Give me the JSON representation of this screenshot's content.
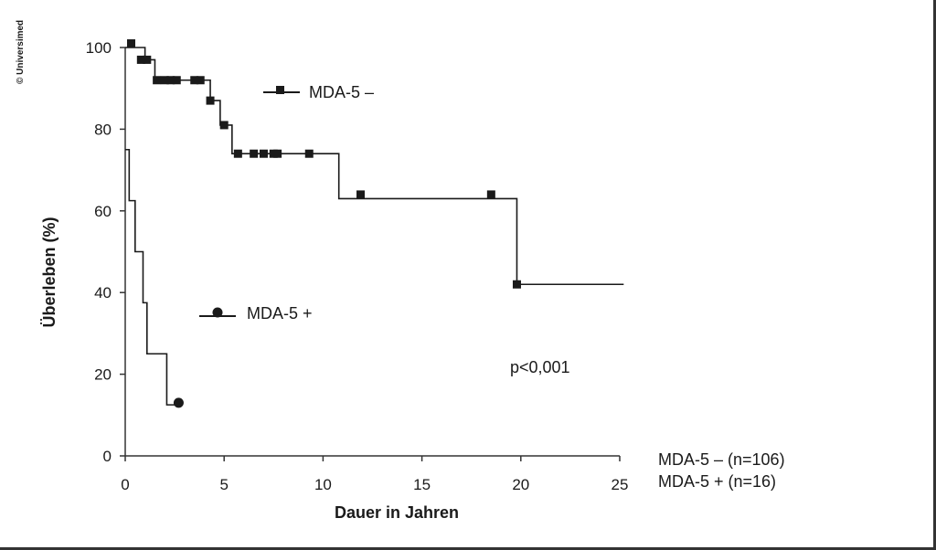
{
  "credit": "© Universimed",
  "chart_data": {
    "type": "line",
    "subtype": "kaplan-meier step",
    "xlabel": "Dauer in Jahren",
    "ylabel": "Überleben (%)",
    "xlim": [
      0,
      25
    ],
    "ylim": [
      0,
      100
    ],
    "xticks": [
      "0",
      "5",
      "10",
      "15",
      "20",
      "25"
    ],
    "yticks": [
      "0",
      "20",
      "40",
      "60",
      "80",
      "100"
    ],
    "grid": false,
    "series": [
      {
        "name": "MDA-5 –",
        "marker": "square",
        "color": "#1a1a1a",
        "steps": [
          [
            0,
            100
          ],
          [
            1.0,
            97
          ],
          [
            1.5,
            92
          ],
          [
            4.3,
            87
          ],
          [
            4.8,
            81
          ],
          [
            5.4,
            74
          ],
          [
            10.8,
            63
          ],
          [
            19.8,
            42
          ],
          [
            25.2,
            42
          ]
        ],
        "censored": [
          [
            0.3,
            101
          ],
          [
            0.8,
            97
          ],
          [
            1.1,
            97
          ],
          [
            1.6,
            92
          ],
          [
            2.0,
            92
          ],
          [
            2.3,
            92
          ],
          [
            2.6,
            92
          ],
          [
            3.5,
            92
          ],
          [
            3.8,
            92
          ],
          [
            4.3,
            87
          ],
          [
            5.0,
            81
          ],
          [
            5.7,
            74
          ],
          [
            6.5,
            74
          ],
          [
            7.0,
            74
          ],
          [
            7.5,
            74
          ],
          [
            7.7,
            74
          ],
          [
            9.3,
            74
          ],
          [
            11.9,
            64
          ],
          [
            18.5,
            64
          ],
          [
            19.8,
            42
          ]
        ]
      },
      {
        "name": "MDA-5 +",
        "marker": "circle",
        "color": "#1a1a1a",
        "steps": [
          [
            0,
            75
          ],
          [
            0.2,
            62.5
          ],
          [
            0.5,
            50
          ],
          [
            0.9,
            37.5
          ],
          [
            1.1,
            25
          ],
          [
            2.1,
            12.5
          ],
          [
            2.7,
            12.5
          ]
        ],
        "censored": [
          [
            2.7,
            13
          ]
        ]
      }
    ],
    "annotations": {
      "pvalue": "p<0,001",
      "n_labels": [
        "MDA-5 – (n=106)",
        "MDA-5 + (n=16)"
      ]
    }
  }
}
